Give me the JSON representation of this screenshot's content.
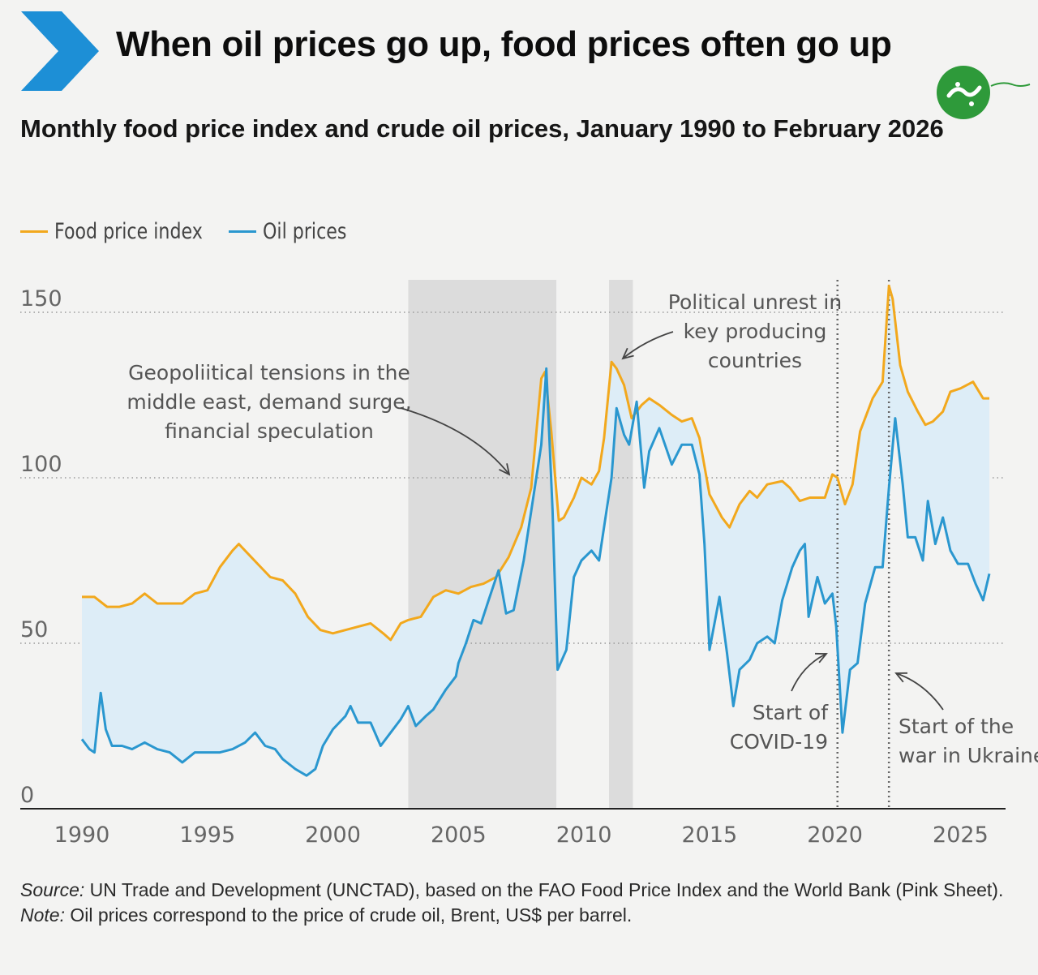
{
  "header": {
    "title": "When oil prices go up, food prices often go up",
    "subtitle": "Monthly food price index and crude oil prices, January 1990 to February 2026"
  },
  "colors": {
    "food": "#f2a81d",
    "oil": "#2a97cf",
    "fill": "#ddedf7",
    "shade": "#dcdcdc",
    "accent": "#1d8fd6"
  },
  "legend": {
    "food_label": "Food price index",
    "oil_label": "Oil prices"
  },
  "chart_data": {
    "type": "line",
    "title": "Monthly food price index and crude oil prices, January 1990 to February 2026",
    "xlim": [
      1990,
      2026.15
    ],
    "ylim": [
      0,
      150
    ],
    "x_ticks": [
      "1990",
      "1995",
      "2000",
      "2005",
      "2010",
      "2015",
      "2020",
      "2025"
    ],
    "y_ticks": [
      "0",
      "50",
      "100",
      "150"
    ],
    "grid": true,
    "legend_position": "top-left",
    "shaded_periods": [
      [
        2003.0,
        2008.9
      ],
      [
        2011.0,
        2011.95
      ]
    ],
    "event_lines": [
      2020.1,
      2022.15
    ],
    "series": [
      {
        "name": "Food price index",
        "points": [
          [
            1990.0,
            64
          ],
          [
            1990.5,
            64
          ],
          [
            1991.0,
            61
          ],
          [
            1991.5,
            61
          ],
          [
            1992.0,
            62
          ],
          [
            1992.5,
            65
          ],
          [
            1993.0,
            62
          ],
          [
            1993.5,
            62
          ],
          [
            1994.0,
            62
          ],
          [
            1994.5,
            65
          ],
          [
            1995.0,
            66
          ],
          [
            1995.5,
            73
          ],
          [
            1996.0,
            78
          ],
          [
            1996.25,
            80
          ],
          [
            1996.5,
            78
          ],
          [
            1997.0,
            74
          ],
          [
            1997.5,
            70
          ],
          [
            1998.0,
            69
          ],
          [
            1998.5,
            65
          ],
          [
            1999.0,
            58
          ],
          [
            1999.5,
            54
          ],
          [
            2000.0,
            53
          ],
          [
            2000.5,
            54
          ],
          [
            2001.0,
            55
          ],
          [
            2001.5,
            56
          ],
          [
            2002.0,
            53
          ],
          [
            2002.3,
            51
          ],
          [
            2002.7,
            56
          ],
          [
            2003.0,
            57
          ],
          [
            2003.5,
            58
          ],
          [
            2004.0,
            64
          ],
          [
            2004.5,
            66
          ],
          [
            2005.0,
            65
          ],
          [
            2005.5,
            67
          ],
          [
            2006.0,
            68
          ],
          [
            2006.5,
            70
          ],
          [
            2007.0,
            76
          ],
          [
            2007.5,
            85
          ],
          [
            2007.9,
            97
          ],
          [
            2008.3,
            130
          ],
          [
            2008.45,
            132
          ],
          [
            2008.7,
            114
          ],
          [
            2009.0,
            87
          ],
          [
            2009.2,
            88
          ],
          [
            2009.6,
            94
          ],
          [
            2009.9,
            100
          ],
          [
            2010.3,
            98
          ],
          [
            2010.6,
            102
          ],
          [
            2010.8,
            112
          ],
          [
            2011.1,
            135
          ],
          [
            2011.3,
            133
          ],
          [
            2011.6,
            128
          ],
          [
            2011.9,
            118
          ],
          [
            2012.3,
            122
          ],
          [
            2012.6,
            124
          ],
          [
            2013.0,
            122
          ],
          [
            2013.5,
            119
          ],
          [
            2013.9,
            117
          ],
          [
            2014.3,
            118
          ],
          [
            2014.6,
            112
          ],
          [
            2015.0,
            95
          ],
          [
            2015.5,
            88
          ],
          [
            2015.8,
            85
          ],
          [
            2016.2,
            92
          ],
          [
            2016.6,
            96
          ],
          [
            2016.9,
            94
          ],
          [
            2017.3,
            98
          ],
          [
            2017.9,
            99
          ],
          [
            2018.2,
            97
          ],
          [
            2018.6,
            93
          ],
          [
            2019.0,
            94
          ],
          [
            2019.6,
            94
          ],
          [
            2019.9,
            101
          ],
          [
            2020.1,
            100
          ],
          [
            2020.4,
            92
          ],
          [
            2020.7,
            98
          ],
          [
            2021.0,
            114
          ],
          [
            2021.5,
            124
          ],
          [
            2021.9,
            129
          ],
          [
            2022.15,
            158
          ],
          [
            2022.3,
            154
          ],
          [
            2022.6,
            134
          ],
          [
            2022.9,
            126
          ],
          [
            2023.3,
            120
          ],
          [
            2023.6,
            116
          ],
          [
            2023.9,
            117
          ],
          [
            2024.3,
            120
          ],
          [
            2024.6,
            126
          ],
          [
            2025.0,
            127
          ],
          [
            2025.5,
            129
          ],
          [
            2025.9,
            124
          ],
          [
            2026.15,
            124
          ]
        ]
      },
      {
        "name": "Oil prices",
        "points": [
          [
            1990.0,
            21
          ],
          [
            1990.3,
            18
          ],
          [
            1990.5,
            17
          ],
          [
            1990.75,
            35
          ],
          [
            1990.95,
            24
          ],
          [
            1991.2,
            19
          ],
          [
            1991.6,
            19
          ],
          [
            1992.0,
            18
          ],
          [
            1992.5,
            20
          ],
          [
            1993.0,
            18
          ],
          [
            1993.5,
            17
          ],
          [
            1994.0,
            14
          ],
          [
            1994.5,
            17
          ],
          [
            1995.0,
            17
          ],
          [
            1995.5,
            17
          ],
          [
            1996.0,
            18
          ],
          [
            1996.5,
            20
          ],
          [
            1996.9,
            23
          ],
          [
            1997.3,
            19
          ],
          [
            1997.7,
            18
          ],
          [
            1998.0,
            15
          ],
          [
            1998.5,
            12
          ],
          [
            1998.95,
            10
          ],
          [
            1999.3,
            12
          ],
          [
            1999.6,
            19
          ],
          [
            2000.0,
            24
          ],
          [
            2000.5,
            28
          ],
          [
            2000.7,
            31
          ],
          [
            2001.0,
            26
          ],
          [
            2001.5,
            26
          ],
          [
            2001.9,
            19
          ],
          [
            2002.3,
            23
          ],
          [
            2002.7,
            27
          ],
          [
            2003.0,
            31
          ],
          [
            2003.3,
            25
          ],
          [
            2003.7,
            28
          ],
          [
            2004.0,
            30
          ],
          [
            2004.5,
            36
          ],
          [
            2004.9,
            40
          ],
          [
            2005.0,
            44
          ],
          [
            2005.3,
            50
          ],
          [
            2005.6,
            57
          ],
          [
            2005.9,
            56
          ],
          [
            2006.2,
            63
          ],
          [
            2006.6,
            72
          ],
          [
            2006.9,
            59
          ],
          [
            2007.2,
            60
          ],
          [
            2007.6,
            75
          ],
          [
            2007.9,
            90
          ],
          [
            2008.3,
            110
          ],
          [
            2008.5,
            133
          ],
          [
            2008.75,
            90
          ],
          [
            2008.95,
            42
          ],
          [
            2009.3,
            48
          ],
          [
            2009.6,
            70
          ],
          [
            2009.9,
            75
          ],
          [
            2010.3,
            78
          ],
          [
            2010.6,
            75
          ],
          [
            2010.9,
            90
          ],
          [
            2011.1,
            100
          ],
          [
            2011.3,
            121
          ],
          [
            2011.6,
            113
          ],
          [
            2011.8,
            110
          ],
          [
            2012.1,
            123
          ],
          [
            2012.4,
            97
          ],
          [
            2012.6,
            108
          ],
          [
            2013.0,
            115
          ],
          [
            2013.5,
            104
          ],
          [
            2013.9,
            110
          ],
          [
            2014.3,
            110
          ],
          [
            2014.6,
            101
          ],
          [
            2014.8,
            80
          ],
          [
            2015.0,
            48
          ],
          [
            2015.4,
            64
          ],
          [
            2015.7,
            47
          ],
          [
            2015.95,
            31
          ],
          [
            2016.2,
            42
          ],
          [
            2016.6,
            45
          ],
          [
            2016.9,
            50
          ],
          [
            2017.3,
            52
          ],
          [
            2017.6,
            50
          ],
          [
            2017.9,
            63
          ],
          [
            2018.3,
            73
          ],
          [
            2018.6,
            78
          ],
          [
            2018.8,
            80
          ],
          [
            2018.95,
            58
          ],
          [
            2019.3,
            70
          ],
          [
            2019.6,
            62
          ],
          [
            2019.9,
            65
          ],
          [
            2020.05,
            55
          ],
          [
            2020.3,
            23
          ],
          [
            2020.6,
            42
          ],
          [
            2020.9,
            44
          ],
          [
            2021.2,
            62
          ],
          [
            2021.6,
            73
          ],
          [
            2021.9,
            73
          ],
          [
            2022.15,
            97
          ],
          [
            2022.4,
            118
          ],
          [
            2022.7,
            98
          ],
          [
            2022.9,
            82
          ],
          [
            2023.2,
            82
          ],
          [
            2023.5,
            75
          ],
          [
            2023.7,
            93
          ],
          [
            2024.0,
            80
          ],
          [
            2024.3,
            88
          ],
          [
            2024.6,
            78
          ],
          [
            2024.9,
            74
          ],
          [
            2025.3,
            74
          ],
          [
            2025.6,
            68
          ],
          [
            2025.9,
            63
          ],
          [
            2026.15,
            71
          ]
        ]
      }
    ],
    "annotations": [
      {
        "id": "geo",
        "lines": [
          "Geopoliitical tensions in the",
          "middle east, demand surge,",
          "financial speculation"
        ]
      },
      {
        "id": "pol",
        "lines": [
          "Political unrest in",
          "key producing",
          "countries"
        ]
      },
      {
        "id": "covid",
        "lines": [
          "Start of",
          "COVID-19"
        ]
      },
      {
        "id": "war",
        "lines": [
          "Start of the",
          "war in Ukraine"
        ]
      }
    ]
  },
  "footer": {
    "source_label": "Source:",
    "source_text": " UN Trade and Development (UNCTAD), based on the FAO Food Price Index and the World Bank (Pink Sheet).",
    "note_label": "Note:",
    "note_text": " Oil prices correspond to the price of crude oil, Brent, US$ per barrel."
  }
}
